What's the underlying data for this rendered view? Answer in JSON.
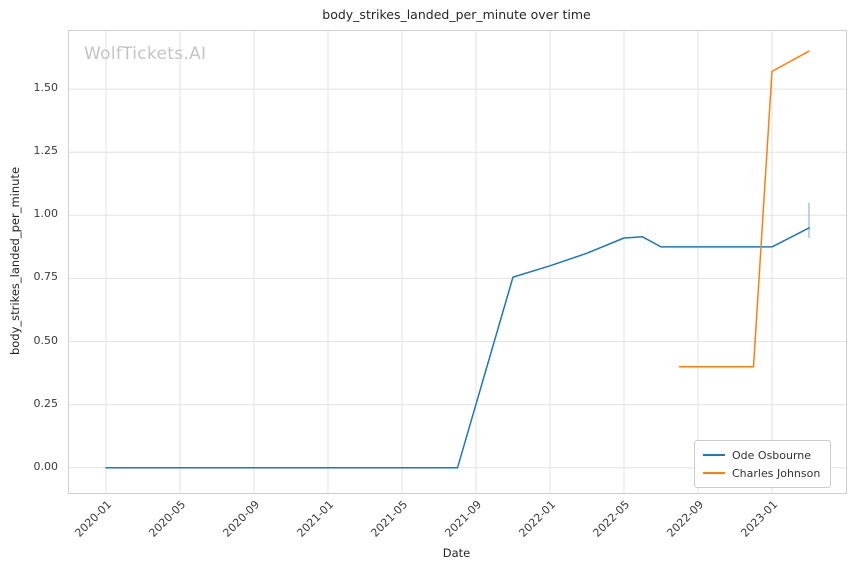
{
  "watermark": "WolfTickets.AI",
  "chart_data": {
    "type": "line",
    "title": "body_strikes_landed_per_minute over time",
    "xlabel": "Date",
    "ylabel": "body_strikes_landed_per_minute",
    "x_ticks": [
      "2020-01",
      "2020-05",
      "2020-09",
      "2021-01",
      "2021-05",
      "2021-09",
      "2022-01",
      "2022-05",
      "2022-09",
      "2023-01"
    ],
    "y_ticks": [
      0.0,
      0.25,
      0.5,
      0.75,
      1.0,
      1.25,
      1.5
    ],
    "y_tick_labels": [
      "0.00",
      "0.25",
      "0.50",
      "0.75",
      "1.00",
      "1.25",
      "1.50"
    ],
    "xlim": [
      "2019-11",
      "2023-05"
    ],
    "ylim": [
      -0.1,
      1.73
    ],
    "grid": true,
    "legend_position": "lower right",
    "series": [
      {
        "name": "Ode Osbourne",
        "color": "#1f77b4",
        "points": [
          [
            "2020-01",
            0.0
          ],
          [
            "2021-08",
            0.0
          ],
          [
            "2021-11",
            0.755
          ],
          [
            "2022-01",
            0.8
          ],
          [
            "2022-03",
            0.85
          ],
          [
            "2022-05",
            0.91
          ],
          [
            "2022-06",
            0.915
          ],
          [
            "2022-07",
            0.875
          ],
          [
            "2023-01",
            0.875
          ],
          [
            "2023-03",
            0.95
          ]
        ]
      },
      {
        "name": "Charles Johnson",
        "color": "#ff7f0e",
        "points": [
          [
            "2022-08",
            0.4
          ],
          [
            "2022-12",
            0.4
          ],
          [
            "2023-01",
            1.57
          ],
          [
            "2023-03",
            1.65
          ]
        ]
      }
    ],
    "annotations": [
      {
        "type": "vertical-segment",
        "x": "2023-03",
        "y_from": 0.91,
        "y_to": 1.05,
        "color": "#a9c6de"
      }
    ]
  }
}
